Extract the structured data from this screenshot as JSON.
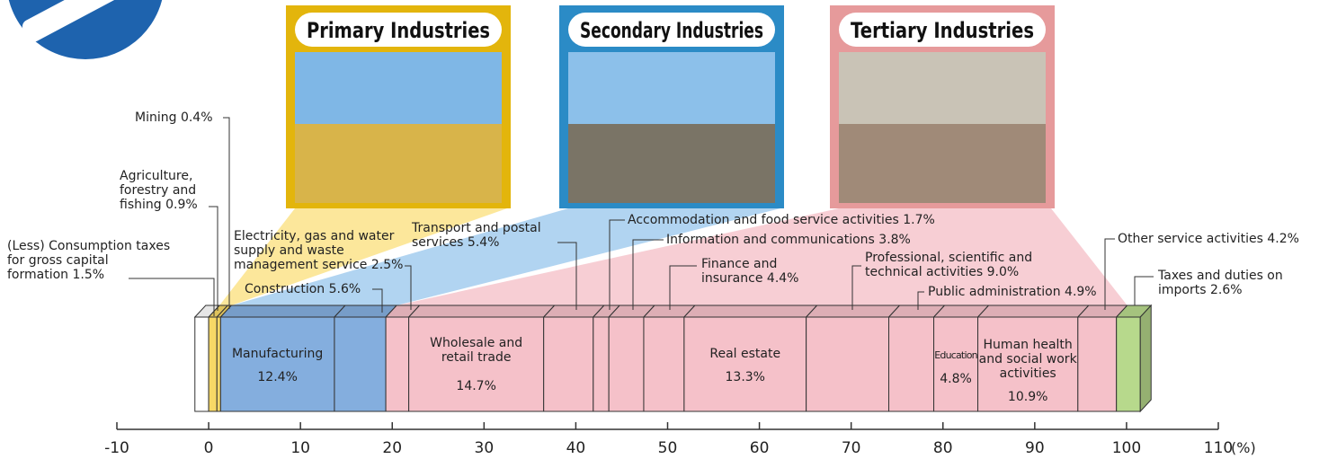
{
  "chart_data": {
    "type": "stacked-bar",
    "groups": [
      {
        "name": "Primary Industries",
        "color": "#e3b50c"
      },
      {
        "name": "Secondary Industries",
        "color": "#2b8bc6"
      },
      {
        "name": "Tertiary Industries",
        "color": "#e69a9b"
      }
    ],
    "categories": [
      "(Less) Consumption taxes for gross capital formation",
      "Agriculture, forestry and fishing",
      "Mining",
      "Manufacturing",
      "Construction",
      "Electricity, gas and water supply and waste management service",
      "Wholesale and retail trade",
      "Transport and postal services",
      "Accommodation and food service activities",
      "Information and communications",
      "Finance and insurance",
      "Real estate",
      "Professional, scientific and technical activities",
      "Public administration",
      "Education",
      "Human health and social work activities",
      "Other service activities",
      "Taxes and duties on imports"
    ],
    "values": [
      -1.5,
      0.9,
      0.4,
      12.4,
      5.6,
      2.5,
      14.7,
      5.4,
      1.7,
      3.8,
      4.4,
      13.3,
      9.0,
      4.9,
      4.8,
      10.9,
      4.2,
      2.6
    ],
    "value_labels": [
      "1.5%",
      "0.9%",
      "0.4%",
      "12.4%",
      "5.6%",
      "2.5%",
      "14.7%",
      "5.4%",
      "1.7%",
      "3.8%",
      "4.4%",
      "13.3%",
      "9.0%",
      "4.9%",
      "4.8%",
      "10.9%",
      "4.2%",
      "2.6%"
    ],
    "colors": [
      "#ffffff",
      "#f7d866",
      "#f7d866",
      "#84aede",
      "#84aede",
      "#f5c1c9",
      "#f5c1c9",
      "#f5c1c9",
      "#f5c1c9",
      "#f5c1c9",
      "#f5c1c9",
      "#f5c1c9",
      "#f5c1c9",
      "#f5c1c9",
      "#f5c1c9",
      "#f5c1c9",
      "#f5c1c9",
      "#b7d98c"
    ],
    "xlim": [
      -10,
      110
    ],
    "xticks": [
      -10,
      0,
      10,
      20,
      30,
      40,
      50,
      60,
      70,
      80,
      90,
      100,
      110
    ],
    "xlabel": "(%)"
  }
}
